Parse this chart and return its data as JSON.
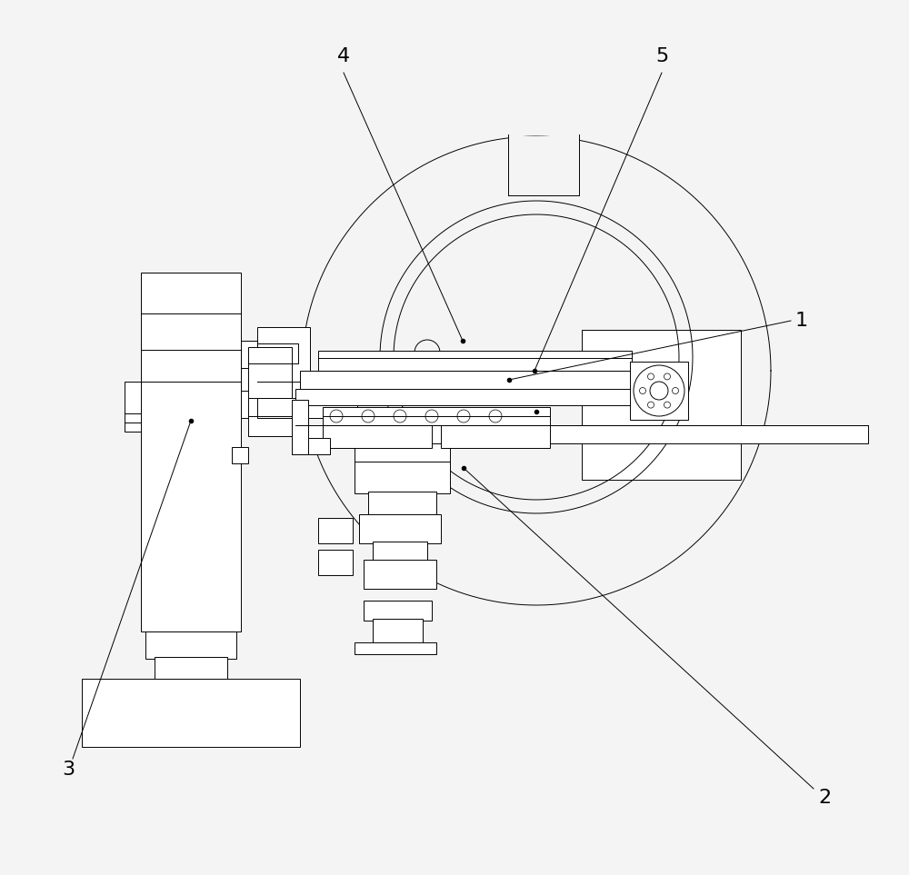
{
  "background_color": "#f4f4f4",
  "line_color": "#000000",
  "fig_w": 10.0,
  "fig_h": 9.63,
  "dpi": 100
}
